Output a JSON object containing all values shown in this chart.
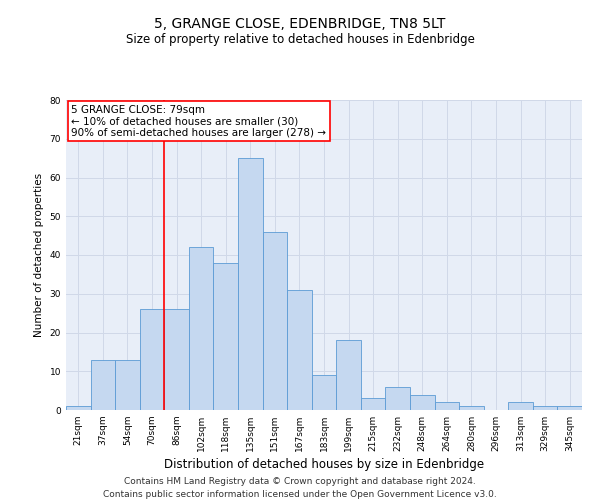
{
  "title": "5, GRANGE CLOSE, EDENBRIDGE, TN8 5LT",
  "subtitle": "Size of property relative to detached houses in Edenbridge",
  "xlabel": "Distribution of detached houses by size in Edenbridge",
  "ylabel": "Number of detached properties",
  "categories": [
    "21sqm",
    "37sqm",
    "54sqm",
    "70sqm",
    "86sqm",
    "102sqm",
    "118sqm",
    "135sqm",
    "151sqm",
    "167sqm",
    "183sqm",
    "199sqm",
    "215sqm",
    "232sqm",
    "248sqm",
    "264sqm",
    "280sqm",
    "296sqm",
    "313sqm",
    "329sqm",
    "345sqm"
  ],
  "values": [
    1,
    13,
    13,
    26,
    26,
    42,
    38,
    65,
    46,
    31,
    9,
    18,
    3,
    6,
    4,
    2,
    1,
    0,
    2,
    1,
    1
  ],
  "bar_color": "#c5d8f0",
  "bar_edge_color": "#5b9bd5",
  "red_line_x": 3.5,
  "annotation_text": "5 GRANGE CLOSE: 79sqm\n← 10% of detached houses are smaller (30)\n90% of semi-detached houses are larger (278) →",
  "annotation_box_color": "white",
  "annotation_box_edge_color": "red",
  "ylim": [
    0,
    80
  ],
  "yticks": [
    0,
    10,
    20,
    30,
    40,
    50,
    60,
    70,
    80
  ],
  "grid_color": "#d0d8e8",
  "background_color": "#e8eef8",
  "footer1": "Contains HM Land Registry data © Crown copyright and database right 2024.",
  "footer2": "Contains public sector information licensed under the Open Government Licence v3.0.",
  "title_fontsize": 10,
  "subtitle_fontsize": 8.5,
  "xlabel_fontsize": 8.5,
  "ylabel_fontsize": 7.5,
  "tick_fontsize": 6.5,
  "annotation_fontsize": 7.5,
  "footer_fontsize": 6.5
}
